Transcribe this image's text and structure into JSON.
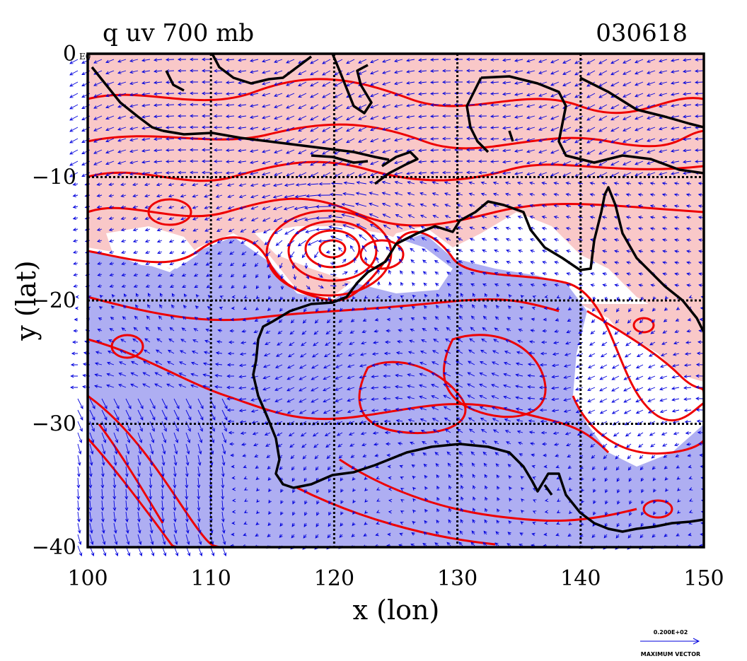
{
  "chart_data": {
    "type": "map",
    "title_left": "q uv 700 mb",
    "title_right": "030618",
    "xlabel": "x (lon)",
    "ylabel": "y (lat)",
    "xlim": [
      100,
      150
    ],
    "ylim": [
      -40,
      0
    ],
    "xticks": [
      100,
      110,
      120,
      130,
      140,
      150
    ],
    "xtick_labels": [
      "100",
      "110",
      "120",
      "130",
      "140",
      "150"
    ],
    "yticks": [
      0,
      -10,
      -20,
      -30,
      -40
    ],
    "ytick_labels": [
      "0",
      "−10",
      "−20",
      "−30",
      "−40"
    ],
    "top_left_fragment": "E0",
    "grid": true,
    "fields": [
      {
        "name": "moist",
        "color": "#f9c8c8"
      },
      {
        "name": "dry",
        "color": "#aeaef2"
      }
    ],
    "contour_color": "#ee0000",
    "coast_color": "#000000",
    "vector_color": "#0000dd",
    "legend_vector": {
      "value": "0.200E+02",
      "label": "MAXIMUM VECTOR"
    }
  }
}
